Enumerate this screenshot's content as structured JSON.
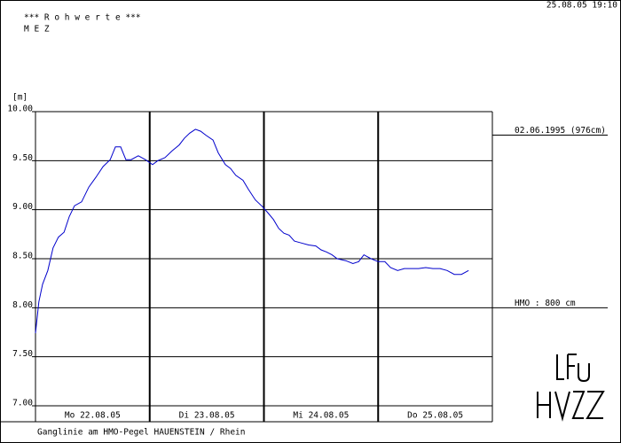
{
  "chart_data": {
    "type": "line",
    "title": "*** R o h w e r t e ***",
    "subtitle": "M E Z",
    "timestamp": "25.08.05 19:10",
    "y_label": "[m]",
    "footer": "Ganglinie am HMO-Pegel HAUENSTEIN / Rhein",
    "xlim": [
      0,
      96
    ],
    "xticks": [
      0,
      24,
      48,
      72,
      96
    ],
    "day_labels": [
      "Mo 22.08.05",
      "Di 23.08.05",
      "Mi 24.08.05",
      "Do 25.08.05"
    ],
    "ylim": [
      7,
      10
    ],
    "yticks": [
      {
        "value": 7,
        "label": "7.00"
      },
      {
        "value": 7.5,
        "label": "7.50"
      },
      {
        "value": 8,
        "label": "8.00"
      },
      {
        "value": 8.5,
        "label": "8.50"
      },
      {
        "value": 9,
        "label": "9.00"
      },
      {
        "value": 9.5,
        "label": "9.50"
      },
      {
        "value": 10,
        "label": "10.00"
      }
    ],
    "grid": true,
    "reference_lines": [
      {
        "value": 9.76,
        "label": "02.06.1995 (976cm)"
      },
      {
        "value": 8,
        "label": "HMO : 800 cm"
      }
    ],
    "series": [
      {
        "color": "#0000cc",
        "x": [
          0,
          0.7,
          1.5,
          2.6,
          3.7,
          4.8,
          6.0,
          7.1,
          8.2,
          9.7,
          11.2,
          12.7,
          14.2,
          15.7,
          16.8,
          17.9,
          19.0,
          20.1,
          21.6,
          23.1,
          24.6,
          25.7,
          27.2,
          28.7,
          30.2,
          31.3,
          32.4,
          33.6,
          34.7,
          35.8,
          37.3,
          38.4,
          39.9,
          41.0,
          42.1,
          43.6,
          44.7,
          46.2,
          47.7,
          48.8,
          50.0,
          51.1,
          52.2,
          53.3,
          54.4,
          55.9,
          57.4,
          58.9,
          60.0,
          61.1,
          62.3,
          63.4,
          65.2,
          66.7,
          67.9,
          69.0,
          70.5,
          72.0,
          73.4,
          74.6,
          76.1,
          77.5,
          79.0,
          80.5,
          82.0,
          83.5,
          85.0,
          86.5,
          88.0,
          89.5,
          91.0
        ],
        "values": [
          7.74,
          8.06,
          8.24,
          8.38,
          8.61,
          8.72,
          8.77,
          8.93,
          9.04,
          9.08,
          9.23,
          9.33,
          9.44,
          9.51,
          9.64,
          9.64,
          9.51,
          9.51,
          9.55,
          9.51,
          9.46,
          9.5,
          9.53,
          9.6,
          9.66,
          9.73,
          9.78,
          9.82,
          9.8,
          9.76,
          9.71,
          9.58,
          9.46,
          9.42,
          9.35,
          9.3,
          9.21,
          9.1,
          9.03,
          8.97,
          8.9,
          8.81,
          8.76,
          8.74,
          8.68,
          8.66,
          8.64,
          8.63,
          8.59,
          8.57,
          8.54,
          8.5,
          8.48,
          8.45,
          8.47,
          8.54,
          8.5,
          8.47,
          8.47,
          8.41,
          8.38,
          8.4,
          8.4,
          8.4,
          8.41,
          8.4,
          8.4,
          8.38,
          8.34,
          8.34,
          8.38
        ]
      }
    ]
  }
}
